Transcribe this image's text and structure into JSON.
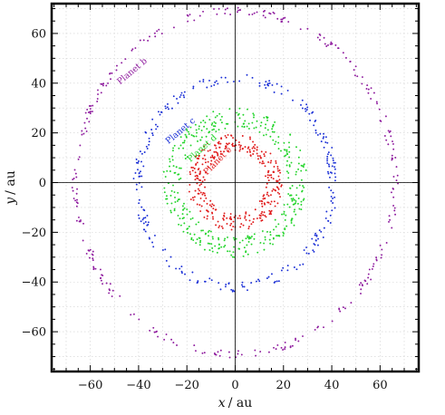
{
  "chart_data": {
    "type": "scatter",
    "title": "",
    "xlabel_var": "x",
    "xlabel_unit": "/ au",
    "ylabel_var": "y",
    "ylabel_unit": "/ au",
    "xlim": [
      -76,
      76
    ],
    "ylim": [
      -76,
      72
    ],
    "xticks": [
      -60,
      -40,
      -20,
      0,
      20,
      40,
      60
    ],
    "yticks": [
      -60,
      -40,
      -20,
      0,
      20,
      40,
      60
    ],
    "xticklabels": [
      "−60",
      "−40",
      "−20",
      "0",
      "20",
      "40",
      "60"
    ],
    "yticklabels": [
      "−60",
      "−40",
      "−20",
      "0",
      "20",
      "40",
      "60"
    ],
    "grid": true,
    "origin_axes": true,
    "series": [
      {
        "name": "Planet b",
        "color": "#8e1a9e",
        "ring_radius_x": 66,
        "ring_radius_y": 69,
        "center": [
          0,
          0
        ],
        "point_count": 300,
        "scatter_width": 1.5,
        "label_at": [
          -42,
          44
        ],
        "label_angle_deg": -40
      },
      {
        "name": "Planet c",
        "color": "#1a2fd6",
        "ring_radius_x": 40.5,
        "ring_radius_y": 42,
        "center": [
          0,
          0
        ],
        "point_count": 260,
        "scatter_width": 2,
        "label_at": [
          -22,
          20
        ],
        "label_angle_deg": -40
      },
      {
        "name": "Planet d",
        "color": "#22d42a",
        "ring_radius_x": 26,
        "ring_radius_y": 26,
        "center": [
          0,
          0
        ],
        "point_count": 380,
        "scatter_width": 4,
        "label_at": [
          -13,
          13
        ],
        "label_angle_deg": -42
      },
      {
        "name": "Planet e",
        "color": "#e01a1a",
        "ring_radius_x": 16,
        "ring_radius_y": 16,
        "center": [
          0,
          0
        ],
        "point_count": 320,
        "scatter_width": 3.5,
        "label_at": [
          -6.5,
          8
        ],
        "label_angle_deg": -45
      }
    ]
  }
}
